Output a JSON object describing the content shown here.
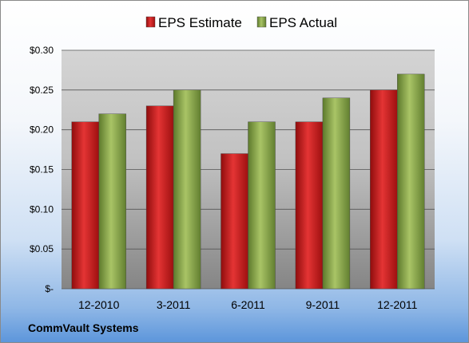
{
  "company": "CommVault Systems",
  "chart_data": {
    "type": "bar",
    "categories": [
      "12-2010",
      "3-2011",
      "6-2011",
      "9-2011",
      "12-2011"
    ],
    "series": [
      {
        "name": "EPS Estimate",
        "values": [
          0.21,
          0.23,
          0.17,
          0.21,
          0.25
        ],
        "color": "#cc1a1a"
      },
      {
        "name": "EPS Actual",
        "values": [
          0.22,
          0.25,
          0.21,
          0.24,
          0.27
        ],
        "color": "#8cab4c"
      }
    ],
    "yticks": [
      "$-",
      "$0.05",
      "$0.10",
      "$0.15",
      "$0.20",
      "$0.25",
      "$0.30"
    ],
    "ylim": [
      0,
      0.3
    ],
    "grid": true,
    "legend": "top-center",
    "title": "",
    "xlabel": "",
    "ylabel": ""
  }
}
